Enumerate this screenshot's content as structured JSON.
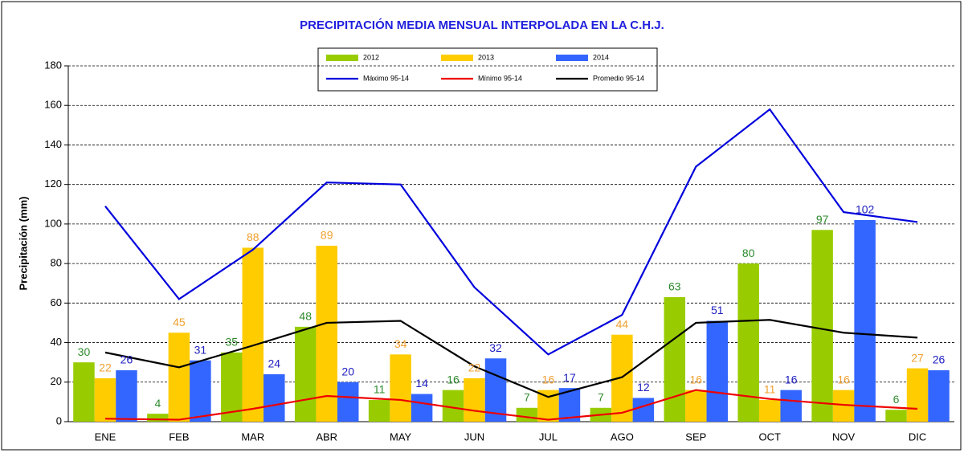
{
  "chart_data": {
    "type": "bar",
    "title": "PRECIPITACIÓN MEDIA MENSUAL INTERPOLADA  EN LA C.H.J.",
    "y_label": "Precipitación (mm)",
    "categories": [
      "ENE",
      "FEB",
      "MAR",
      "ABR",
      "MAY",
      "JUN",
      "JUL",
      "AGO",
      "SEP",
      "OCT",
      "NOV",
      "DIC"
    ],
    "ylim": [
      0,
      180
    ],
    "yticks": [
      0,
      20,
      40,
      60,
      80,
      100,
      120,
      140,
      160,
      180
    ],
    "grid": true,
    "series": [
      {
        "name": "2012",
        "type": "bar",
        "color": "#99cc00",
        "label_color": "#2e8b2e",
        "values": [
          30,
          4,
          35,
          48,
          11,
          16,
          7,
          7,
          63,
          80,
          97,
          6
        ]
      },
      {
        "name": "2013",
        "type": "bar",
        "color": "#ffcc00",
        "label_color": "#f0a030",
        "values": [
          22,
          45,
          88,
          89,
          34,
          22,
          16,
          44,
          16,
          11,
          16,
          27
        ]
      },
      {
        "name": "2014",
        "type": "bar",
        "color": "#3366ff",
        "label_color": "#2020c0",
        "values": [
          26,
          31,
          24,
          20,
          14,
          32,
          17,
          12,
          51,
          16,
          102,
          26
        ]
      },
      {
        "name": "Máximo 95-14",
        "type": "line",
        "color": "#0000dd",
        "values": [
          109,
          62,
          87,
          121,
          120,
          68,
          34,
          54,
          129,
          158,
          106,
          101
        ]
      },
      {
        "name": "Mínimo 95-14",
        "type": "line",
        "color": "#ee0000",
        "values": [
          1.5,
          1,
          6.5,
          13,
          11,
          5.5,
          1,
          4.5,
          16,
          11.5,
          8.5,
          6.5
        ]
      },
      {
        "name": "Promedio 95-14",
        "type": "line",
        "color": "#000000",
        "values": [
          35,
          27.5,
          38.5,
          50,
          51,
          28,
          12.5,
          22.5,
          50,
          51.5,
          45,
          42.5
        ]
      }
    ]
  }
}
